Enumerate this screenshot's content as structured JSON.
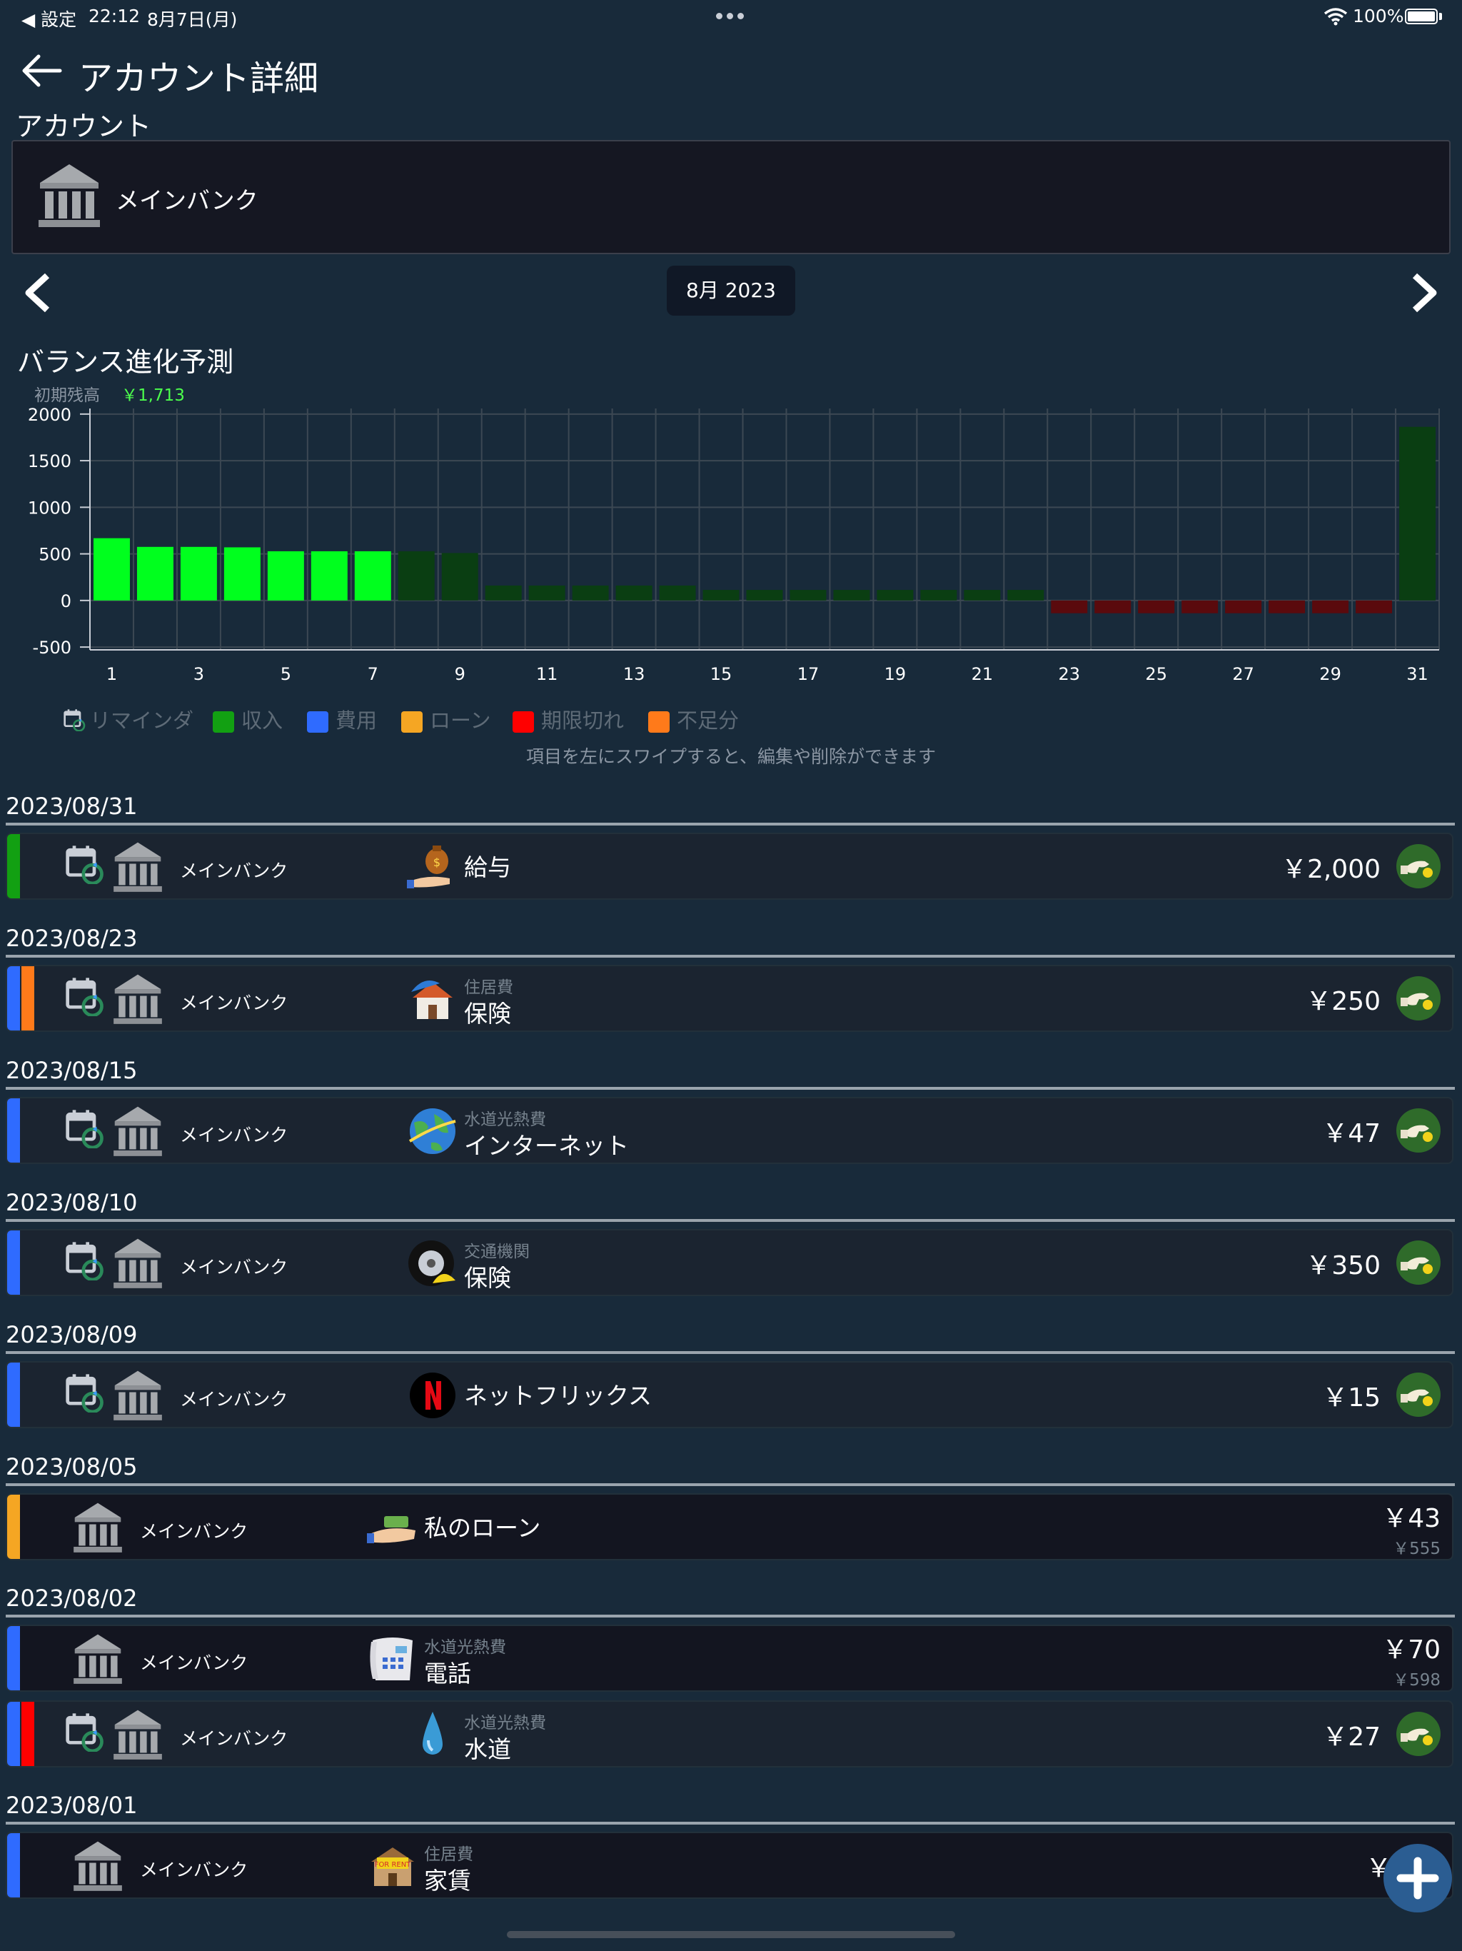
{
  "status_bar": {
    "back_app": "◀ 設定",
    "time": "22:12",
    "date": "8月7日(月)",
    "battery": "100%"
  },
  "header": {
    "title": "アカウント詳細"
  },
  "account_section": {
    "label": "アカウント",
    "account_name": "メインバンク"
  },
  "month_nav": {
    "current": "8月 2023"
  },
  "chart_section": {
    "title": "バランス進化予測",
    "initial_label": "初期残高",
    "initial_value": "￥1,713"
  },
  "chart_data": {
    "type": "bar",
    "title": "バランス進化予測",
    "categories": [
      "1",
      "2",
      "3",
      "4",
      "5",
      "6",
      "7",
      "8",
      "9",
      "10",
      "11",
      "12",
      "13",
      "14",
      "15",
      "16",
      "17",
      "18",
      "19",
      "20",
      "21",
      "22",
      "23",
      "24",
      "25",
      "26",
      "27",
      "28",
      "29",
      "30",
      "31"
    ],
    "values": [
      668,
      575,
      575,
      570,
      528,
      528,
      528,
      528,
      509,
      160,
      160,
      160,
      160,
      160,
      113,
      113,
      113,
      113,
      113,
      113,
      113,
      113,
      -137,
      -137,
      -137,
      -137,
      -137,
      -137,
      -137,
      -137,
      1863
    ],
    "x_tick_labels": [
      "1",
      "3",
      "5",
      "7",
      "9",
      "11",
      "13",
      "15",
      "17",
      "19",
      "21",
      "23",
      "25",
      "27",
      "29",
      "31"
    ],
    "y_tick_labels": [
      "2000",
      "1500",
      "1000",
      "500",
      "0",
      "-500"
    ],
    "ylim": [
      -500,
      2000
    ],
    "grid": true,
    "colors": {
      "current_positive": "#00ff1e",
      "future_positive": "#0a3e12",
      "negative": "#5a0a0d"
    },
    "current_day_cutoff": 7
  },
  "legend": [
    {
      "label": "リマインダ",
      "icon": "calendar-refresh-icon"
    },
    {
      "label": "収入",
      "color": "#12a012"
    },
    {
      "label": "費用",
      "color": "#2f6bff"
    },
    {
      "label": "ローン",
      "color": "#f5a623"
    },
    {
      "label": "期限切れ",
      "color": "#ff0000"
    },
    {
      "label": "不足分",
      "color": "#ff7a1a"
    }
  ],
  "swipe_hint": "項目を左にスワイプすると、編集や削除ができます",
  "groups": [
    {
      "date": "2023/08/31",
      "rows": [
        {
          "bank": "メインバンク",
          "category": "",
          "name": "給与",
          "amount": "￥2,000",
          "sub_amount": "",
          "reminder": true,
          "bars": [
            "#12a012"
          ],
          "icon": "money-bag-hand-icon"
        }
      ]
    },
    {
      "date": "2023/08/23",
      "rows": [
        {
          "bank": "メインバンク",
          "category": "住居費",
          "name": "保険",
          "amount": "￥250",
          "sub_amount": "",
          "reminder": true,
          "bars": [
            "#2f6bff",
            "#ff7a1a"
          ],
          "icon": "house-umbrella-icon"
        }
      ]
    },
    {
      "date": "2023/08/15",
      "rows": [
        {
          "bank": "メインバンク",
          "category": "水道光熱費",
          "name": "インターネット",
          "amount": "￥47",
          "sub_amount": "",
          "reminder": true,
          "bars": [
            "#2f6bff"
          ],
          "icon": "globe-icon"
        }
      ]
    },
    {
      "date": "2023/08/10",
      "rows": [
        {
          "bank": "メインバンク",
          "category": "交通機関",
          "name": "保険",
          "amount": "￥350",
          "sub_amount": "",
          "reminder": true,
          "bars": [
            "#2f6bff"
          ],
          "icon": "tire-umbrella-icon"
        }
      ]
    },
    {
      "date": "2023/08/09",
      "rows": [
        {
          "bank": "メインバンク",
          "category": "",
          "name": "ネットフリックス",
          "amount": "￥15",
          "sub_amount": "",
          "reminder": true,
          "bars": [
            "#2f6bff"
          ],
          "icon": "netflix-icon"
        }
      ]
    },
    {
      "date": "2023/08/05",
      "rows": [
        {
          "bank": "メインバンク",
          "category": "",
          "name": "私のローン",
          "amount": "￥43",
          "sub_amount": "￥555",
          "reminder": false,
          "bars": [
            "#f5a623"
          ],
          "icon": "loan-hand-icon"
        }
      ]
    },
    {
      "date": "2023/08/02",
      "rows": [
        {
          "bank": "メインバンク",
          "category": "水道光熱費",
          "name": "電話",
          "amount": "￥70",
          "sub_amount": "￥598",
          "reminder": false,
          "bars": [
            "#2f6bff"
          ],
          "icon": "telephone-icon"
        },
        {
          "bank": "メインバンク",
          "category": "水道光熱費",
          "name": "水道",
          "amount": "￥27",
          "sub_amount": "",
          "reminder": true,
          "bars": [
            "#2f6bff",
            "#ff0000"
          ],
          "icon": "water-drop-icon"
        }
      ]
    },
    {
      "date": "2023/08/01",
      "rows": [
        {
          "bank": "メインバンク",
          "category": "住居費",
          "name": "家賃",
          "amount": "￥600",
          "sub_amount": "",
          "reminder": false,
          "bars": [
            "#2f6bff"
          ],
          "icon": "for-rent-house-icon"
        }
      ]
    }
  ]
}
